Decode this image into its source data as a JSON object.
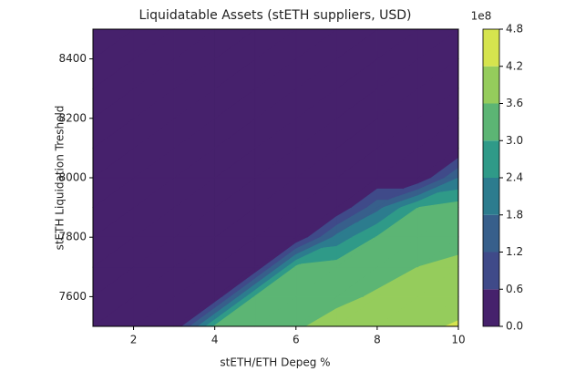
{
  "chart_data": {
    "type": "contourf",
    "title": "Liquidatable Assets (stETH suppliers, USD)",
    "x_label": "stETH/ETH Depeg %",
    "y_label": "stETH Liquidation Treshold",
    "x": [
      1,
      2,
      3,
      4,
      5,
      6,
      7,
      8,
      9,
      10
    ],
    "y": [
      7500,
      7600,
      7700,
      7800,
      7900,
      8000,
      8100,
      8200,
      8300,
      8400,
      8500
    ],
    "z": [
      [
        0,
        0,
        0,
        3.1,
        3.3,
        3.55,
        3.75,
        3.95,
        4.1,
        4.25
      ],
      [
        0,
        0,
        0,
        0,
        3.1,
        3.3,
        3.5,
        3.65,
        3.85,
        4.0
      ],
      [
        0,
        0,
        0,
        0,
        0,
        3.1,
        3.3,
        3.45,
        3.6,
        3.7
      ],
      [
        0,
        0,
        0,
        0,
        0,
        0,
        2.0,
        3.05,
        3.3,
        3.45
      ],
      [
        0,
        0,
        0,
        0,
        0,
        0,
        0,
        1.6,
        3.0,
        3.3
      ],
      [
        0,
        0,
        0,
        0,
        0,
        0,
        0,
        0,
        0,
        1.8
      ],
      [
        0,
        0,
        0,
        0,
        0,
        0,
        0,
        0,
        0,
        0
      ],
      [
        0,
        0,
        0,
        0,
        0,
        0,
        0,
        0,
        0,
        0
      ],
      [
        0,
        0,
        0,
        0,
        0,
        0,
        0,
        0,
        0,
        0
      ],
      [
        0,
        0,
        0,
        0,
        0,
        0,
        0,
        0,
        0,
        0
      ],
      [
        0,
        0,
        0,
        0,
        0,
        0,
        0,
        0,
        0,
        0
      ]
    ],
    "xlim": [
      1,
      10
    ],
    "ylim": [
      7500,
      8500
    ],
    "xticks": [
      2,
      4,
      6,
      8,
      10
    ],
    "yticks": [
      7600,
      7800,
      8000,
      8200,
      8400
    ],
    "colorbar": {
      "offset_label": "1e8",
      "levels": [
        {
          "value": 0,
          "label": "0.0"
        },
        {
          "value": 0.6,
          "label": "0.6"
        },
        {
          "value": 1.2,
          "label": "1.2"
        },
        {
          "value": 1.8,
          "label": "1.8"
        },
        {
          "value": 2.4,
          "label": "2.4"
        },
        {
          "value": 3,
          "label": "3.0"
        },
        {
          "value": 3.6,
          "label": "3.6"
        },
        {
          "value": 4.2,
          "label": "4.2"
        },
        {
          "value": 4.8,
          "label": "4.8"
        }
      ],
      "colors": [
        "#46216c",
        "#3f4a89",
        "#375f8b",
        "#2c7c8e",
        "#2f9a88",
        "#5cb574",
        "#95cc5c",
        "#d6e44e"
      ]
    }
  }
}
